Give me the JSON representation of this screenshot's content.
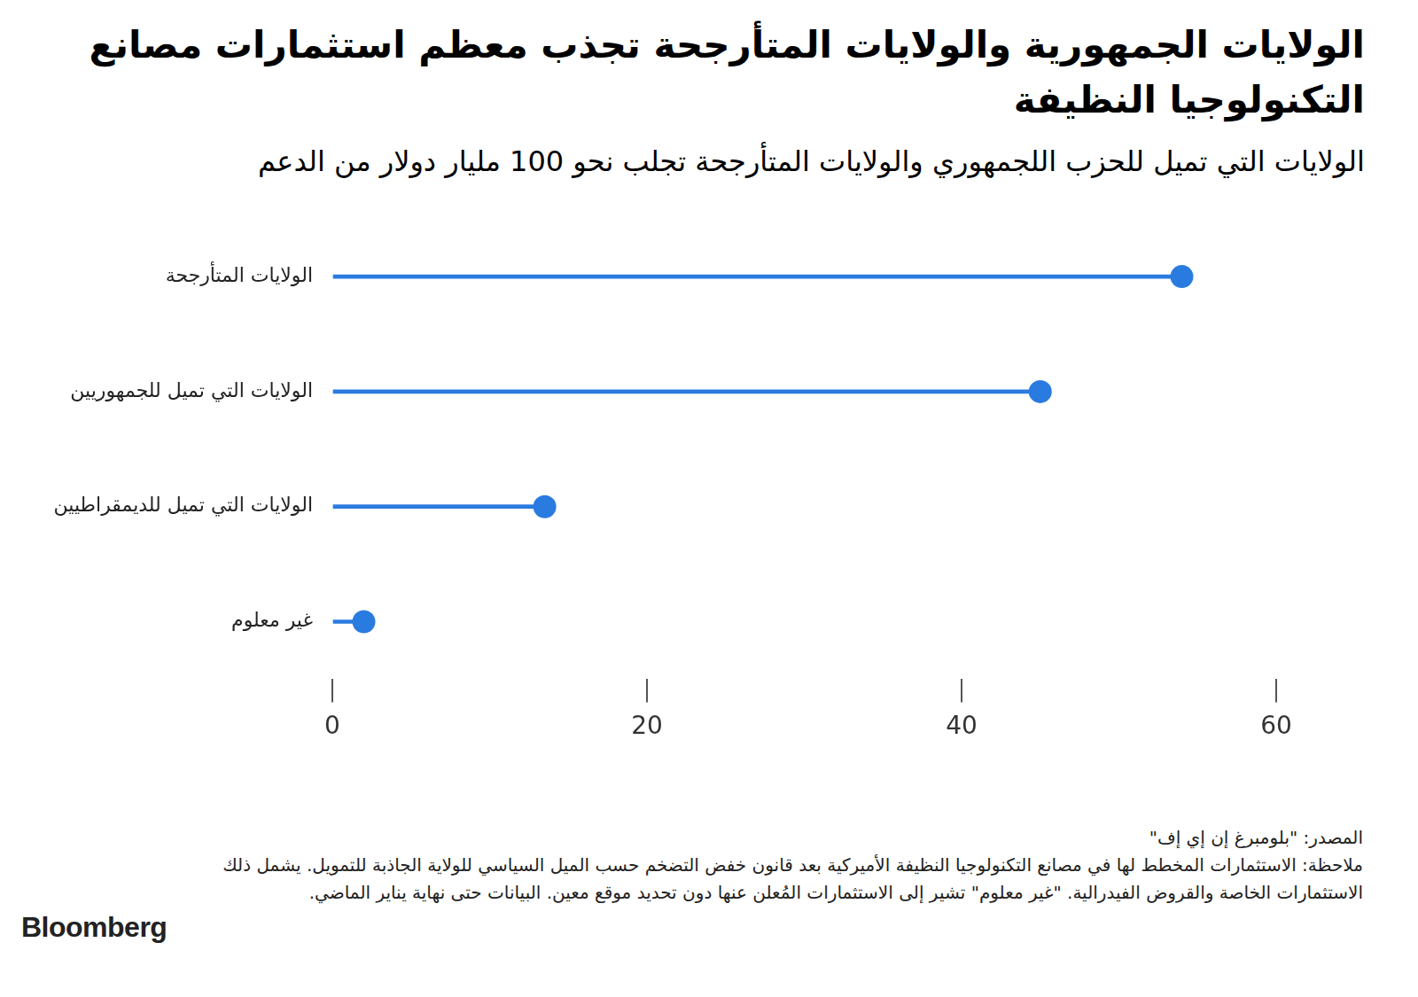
{
  "chart_data": {
    "type": "bar",
    "orientation": "horizontal",
    "marker": "circle",
    "title": "الولايات الجمهورية والولايات المتأرجحة تجذب معظم استثمارات مصانع التكنولوجيا النظيفة",
    "subtitle": "الولايات التي تميل للحزب اللجمهوري والولايات المتأرجحة تجلب نحو 100 مليار دولار من الدعم",
    "categories": [
      "الولايات المتأرجحة",
      "الولايات التي تميل للجمهوريين",
      "الولايات التي تميل للديمقراطيين",
      "غير معلوم"
    ],
    "values": [
      54,
      45,
      13.5,
      2
    ],
    "color": "#2a7be0",
    "xlim": [
      0,
      60
    ],
    "xticks": [
      0,
      20,
      40,
      60
    ],
    "grid": false,
    "source": "المصدر: \"بلومبرغ إن إي إف\"",
    "note": "ملاحظة: الاستثمارات المخطط لها في مصانع التكنولوجيا النظيفة الأميركية بعد قانون خفض التضخم حسب الميل السياسي للولاية الجاذبة للتمويل. يشمل ذلك الاستثمارات الخاصة والقروض الفيدرالية. \"غير معلوم\" تشير إلى الاستثمارات المُعلن عنها دون تحديد موقع معين. البيانات حتى نهاية يناير الماضي.",
    "logo": "Bloomberg"
  }
}
